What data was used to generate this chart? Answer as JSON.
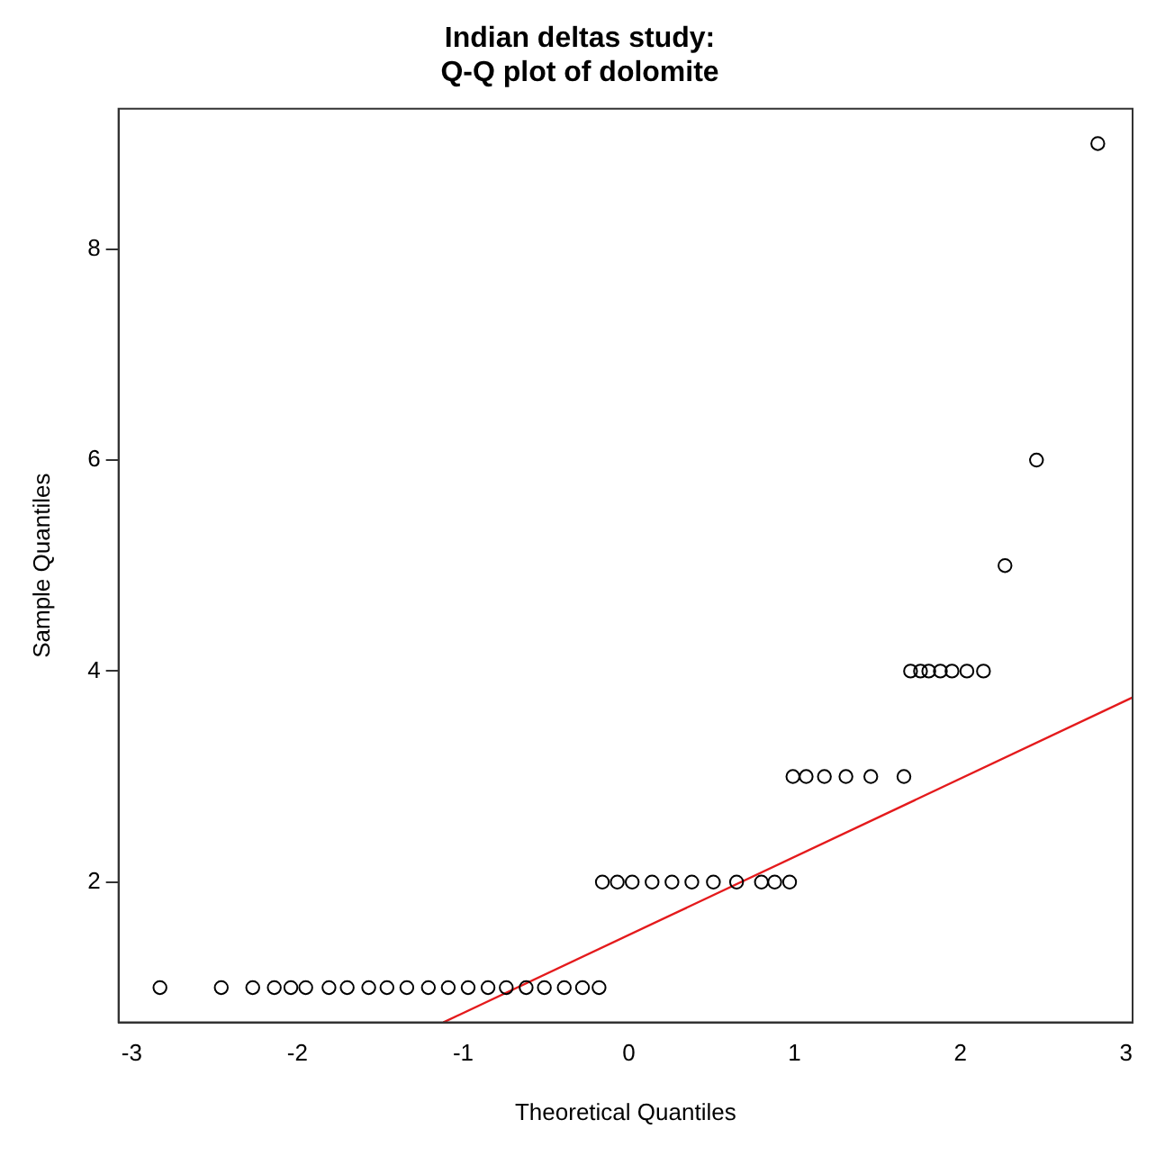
{
  "chart_data": {
    "type": "scatter",
    "title": "Indian deltas study:\nQ-Q plot of dolomite",
    "xlabel": "Theoretical Quantiles",
    "ylabel": "Sample Quantiles",
    "xlim": [
      -3.08,
      3.04
    ],
    "xticks": [
      -3,
      -2,
      -1,
      0,
      1,
      2,
      3
    ],
    "ylim": [
      0.67,
      9.33
    ],
    "yticks": [
      2,
      4,
      6,
      8
    ],
    "grid": false,
    "legend": false,
    "marker": "circle",
    "series": [
      {
        "color": "#000000",
        "x": [
          -2.83,
          -2.46,
          -2.27,
          -2.14,
          -2.04,
          -1.95,
          -1.81,
          -1.7,
          -1.57,
          -1.46,
          -1.34,
          -1.21,
          -1.09,
          -0.97,
          -0.85,
          -0.74,
          -0.62,
          -0.51,
          -0.39,
          -0.28,
          -0.18,
          -0.16,
          -0.07,
          0.02,
          0.14,
          0.26,
          0.38,
          0.51,
          0.65,
          0.8,
          0.88,
          0.97,
          0.99,
          1.07,
          1.18,
          1.31,
          1.46,
          1.66,
          1.7,
          1.76,
          1.81,
          1.88,
          1.95,
          2.04,
          2.14,
          2.27,
          2.46,
          2.83
        ],
        "values": [
          1,
          1,
          1,
          1,
          1,
          1,
          1,
          1,
          1,
          1,
          1,
          1,
          1,
          1,
          1,
          1,
          1,
          1,
          1,
          1,
          1,
          2,
          2,
          2,
          2,
          2,
          2,
          2,
          2,
          2,
          2,
          2,
          3,
          3,
          3,
          3,
          3,
          3,
          4,
          4,
          4,
          4,
          4,
          4,
          4,
          5,
          6,
          9
        ]
      },
      {
        "type": "line",
        "color": "#e41a1c",
        "marker": "none",
        "x": [
          -1.12,
          3.04
        ],
        "values": [
          0.67,
          3.75
        ]
      }
    ]
  }
}
